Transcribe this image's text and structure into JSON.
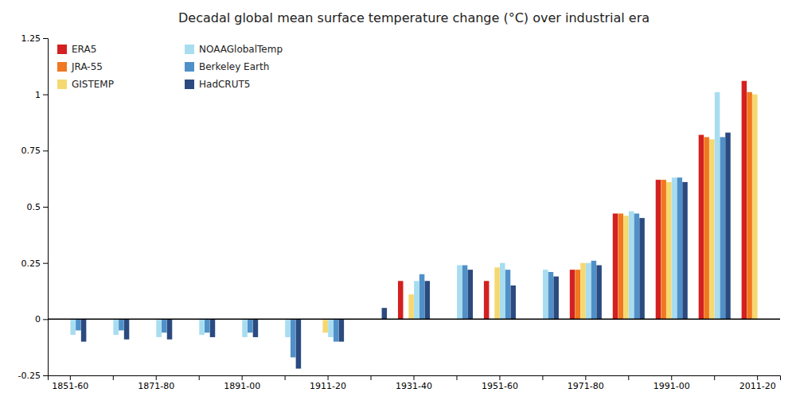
{
  "chart_data": {
    "type": "bar",
    "title": "Decadal global mean surface temperature change (°C) over industrial era",
    "categories": [
      "1851-60",
      null,
      "1871-80",
      null,
      "1891-00",
      null,
      "1911-20",
      null,
      "1931-40",
      null,
      "1951-60",
      null,
      "1971-80",
      null,
      "1991-00",
      null,
      "2011-20"
    ],
    "series": [
      {
        "name": "ERA5",
        "color": "#d42020",
        "values": [
          null,
          null,
          null,
          null,
          null,
          null,
          null,
          null,
          0.17,
          null,
          0.17,
          null,
          0.22,
          0.47,
          0.62,
          0.82,
          1.06
        ]
      },
      {
        "name": "JRA-55",
        "color": "#f07820",
        "values": [
          null,
          null,
          null,
          null,
          null,
          null,
          null,
          null,
          null,
          null,
          null,
          null,
          0.22,
          0.47,
          0.62,
          0.81,
          1.01
        ]
      },
      {
        "name": "GISTEMP",
        "color": "#f5d870",
        "values": [
          null,
          null,
          null,
          null,
          null,
          null,
          -0.06,
          null,
          0.11,
          null,
          0.23,
          null,
          0.25,
          0.46,
          0.61,
          0.8,
          1.0
        ]
      },
      {
        "name": "NOAAGlobalTemp",
        "color": "#a8ddf0",
        "values": [
          -0.07,
          -0.07,
          -0.08,
          -0.07,
          -0.08,
          -0.08,
          -0.08,
          0.0,
          0.17,
          0.24,
          0.25,
          0.22,
          0.25,
          0.48,
          0.63,
          1.01,
          null
        ]
      },
      {
        "name": "Berkeley Earth",
        "color": "#5090c8",
        "values": [
          -0.05,
          -0.05,
          -0.06,
          -0.06,
          -0.06,
          -0.17,
          -0.1,
          0.0,
          0.2,
          0.24,
          0.22,
          0.21,
          0.26,
          0.47,
          0.63,
          0.81,
          null
        ]
      },
      {
        "name": "HadCRUT5",
        "color": "#2a4a80",
        "values": [
          -0.1,
          -0.09,
          -0.09,
          -0.08,
          -0.08,
          -0.22,
          -0.1,
          0.05,
          0.17,
          0.22,
          0.15,
          0.19,
          0.24,
          0.45,
          0.61,
          0.83,
          null
        ]
      }
    ],
    "ylim": [
      -0.25,
      1.25
    ],
    "yticks": [
      -0.25,
      0,
      0.25,
      0.5,
      0.75,
      1,
      1.25
    ],
    "legend": "upper left"
  }
}
